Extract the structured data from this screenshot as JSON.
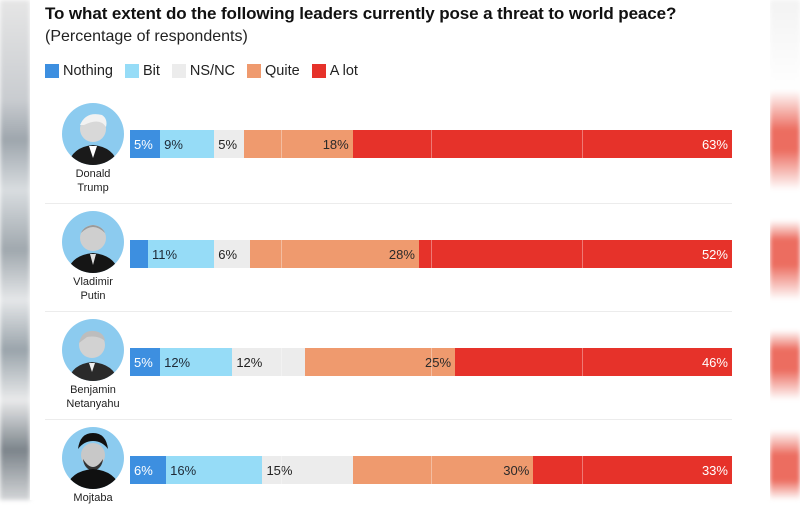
{
  "chart_data": {
    "type": "bar",
    "orientation": "horizontal",
    "stacked": true,
    "normalized_to": 100,
    "title": "To what extent do the following leaders currently pose a threat to world peace?",
    "subtitle": "(Percentage of respondents)",
    "xlabel": "",
    "ylabel": "",
    "xlim": [
      0,
      100
    ],
    "gridlines_at": [
      25,
      50,
      75
    ],
    "legend_position": "top-left",
    "categories": [
      "Donald Trump",
      "Vladimir Putin",
      "Benjamin Netanyahu",
      "Mojtaba"
    ],
    "category_lines": [
      [
        "Donald",
        "Trump"
      ],
      [
        "Vladimir",
        "Putin"
      ],
      [
        "Benjamin",
        "Netanyahu"
      ],
      [
        "Mojtaba",
        ""
      ]
    ],
    "series": [
      {
        "name": "Nothing",
        "color": "#3d8fe0",
        "label_color": "#ffffff",
        "values": [
          5,
          3,
          5,
          6
        ],
        "labels": [
          "5%",
          "",
          "5%",
          "6%"
        ]
      },
      {
        "name": "Bit",
        "color": "#96dcf7",
        "label_color": "#1f2a36",
        "values": [
          9,
          11,
          12,
          16
        ],
        "labels": [
          "9%",
          "11%",
          "12%",
          "16%"
        ]
      },
      {
        "name": "NS/NC",
        "color": "#ececec",
        "label_color": "#222222",
        "values": [
          5,
          6,
          12,
          15
        ],
        "labels": [
          "5%",
          "6%",
          "12%",
          "15%"
        ]
      },
      {
        "name": "Quite",
        "color": "#ef9a6e",
        "label_color": "#2a2a2a",
        "values": [
          18,
          28,
          25,
          30
        ],
        "labels": [
          "18%",
          "28%",
          "25%",
          "30%"
        ]
      },
      {
        "name": "A lot",
        "color": "#e6322a",
        "label_color": "#ffffff",
        "values": [
          63,
          52,
          46,
          33
        ],
        "labels": [
          "63%",
          "52%",
          "46%",
          "33%"
        ]
      }
    ]
  },
  "legend": [
    {
      "label": "Nothing",
      "color": "#3d8fe0"
    },
    {
      "label": "Bit",
      "color": "#96dcf7"
    },
    {
      "label": "NS/NC",
      "color": "#ececec"
    },
    {
      "label": "Quite",
      "color": "#ef9a6e"
    },
    {
      "label": "A lot",
      "color": "#e6322a"
    }
  ],
  "avatars": [
    {
      "icon": "person-portrait-icon",
      "subject": "Donald Trump"
    },
    {
      "icon": "person-portrait-icon",
      "subject": "Vladimir Putin"
    },
    {
      "icon": "person-portrait-icon",
      "subject": "Benjamin Netanyahu"
    },
    {
      "icon": "person-portrait-icon",
      "subject": "Mojtaba"
    }
  ]
}
